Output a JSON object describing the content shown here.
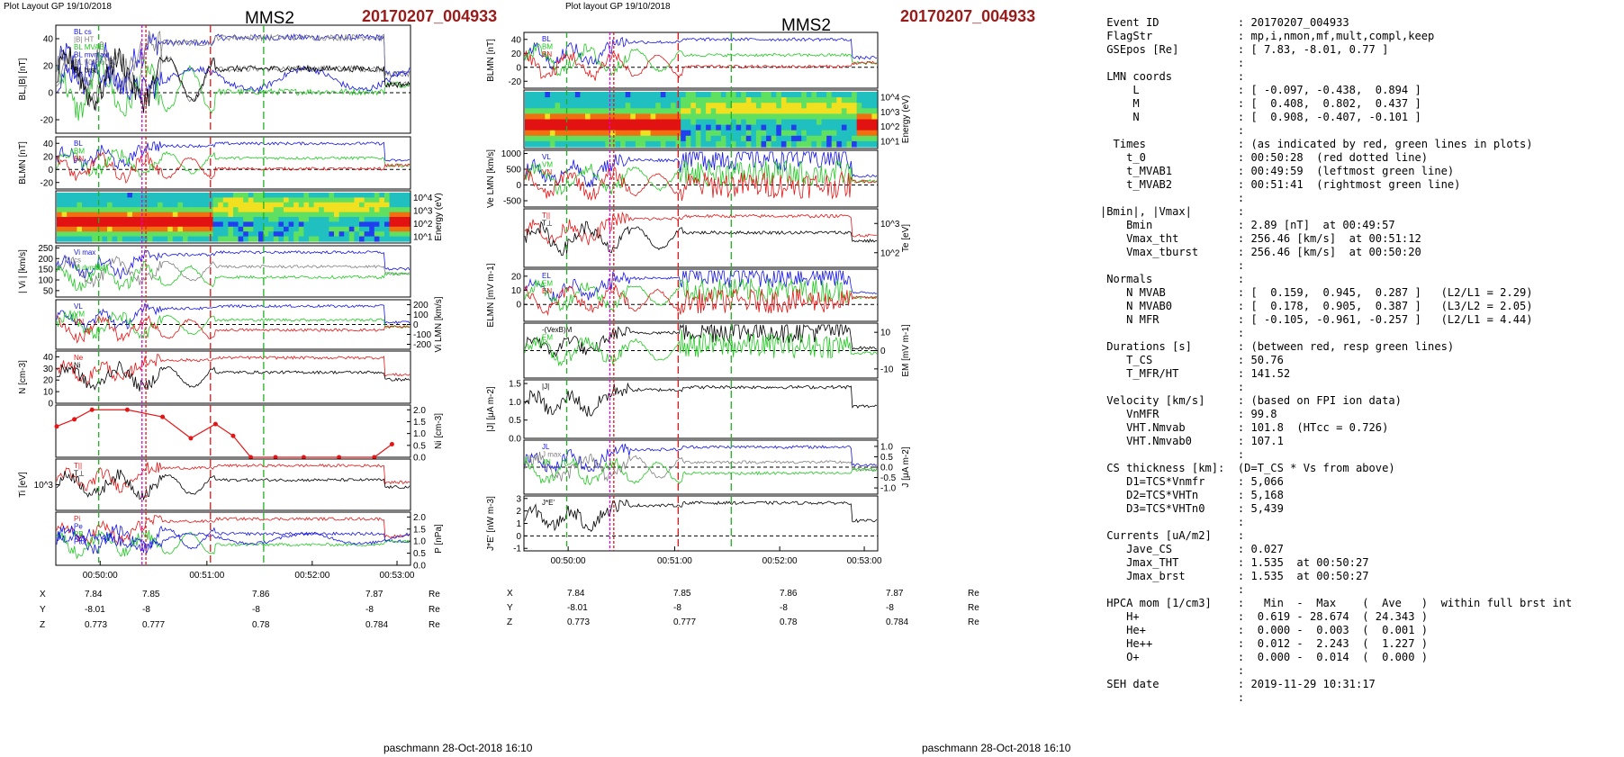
{
  "header": {
    "left_title": "Plot Layout GP 19/10/2018",
    "middle_title": "Plot layout GP 19/10/2018",
    "mms": "MMS2",
    "event": "20170207_004933"
  },
  "footer": "paschmann 28-Oct-2018 16:10",
  "time_ticks": [
    "00:50:00",
    "00:51:00",
    "00:52:00",
    "00:53:00"
  ],
  "ephemeris": [
    {
      "label": "X",
      "values": [
        "7.84",
        "7.85",
        "7.86",
        "7.87"
      ],
      "unit": "Re"
    },
    {
      "label": "Y",
      "values": [
        "-8.01",
        "-8",
        "-8",
        "-8"
      ],
      "unit": "Re"
    },
    {
      "label": "Z",
      "values": [
        "0.773",
        "0.777",
        "0.78",
        "0.784"
      ],
      "unit": "Re"
    }
  ],
  "chart_data": [
    {
      "type": "line",
      "panel": "left-1",
      "ylabel": "BL,|B| [nT]",
      "yticks": [
        "40",
        "20",
        "0",
        "-20"
      ],
      "ylim": [
        -30,
        50
      ],
      "legend": [
        "BL cs",
        "|B| HT",
        "BL MVAB",
        "BL mvmax",
        "BL 50% of BL",
        "BL brst"
      ]
    },
    {
      "type": "line",
      "panel": "left-2",
      "ylabel": "BLMN [nT]",
      "yticks": [
        "40",
        "20",
        "0",
        "-20"
      ],
      "ylim": [
        -30,
        50
      ],
      "series": [
        {
          "name": "BL",
          "color": "#1515e6"
        },
        {
          "name": "BM",
          "color": "#22c922"
        },
        {
          "name": "BN",
          "color": "#e61515"
        }
      ]
    },
    {
      "type": "heatmap",
      "panel": "left-3",
      "ylabel": "Energy (eV)",
      "yticks": [
        "10^4",
        "10^3",
        "10^2",
        "10^1"
      ]
    },
    {
      "type": "line",
      "panel": "left-4",
      "ylabel": "| Vi | [km/s]",
      "yticks": [
        "250",
        "200",
        "150",
        "100",
        "50"
      ],
      "ylim": [
        20,
        260
      ],
      "legend": [
        "Vi max",
        "cs",
        "Vi dvmax"
      ]
    },
    {
      "type": "line",
      "panel": "left-5",
      "ylabel": "Vi LMN [km/s]",
      "yticks": [
        "200",
        "100",
        "0",
        "-100",
        "-200"
      ],
      "ylim": [
        -250,
        250
      ],
      "series": [
        {
          "name": "VL",
          "color": "#1515e6"
        },
        {
          "name": "VM",
          "color": "#22c922"
        },
        {
          "name": "VN",
          "color": "#e61515"
        }
      ]
    },
    {
      "type": "line",
      "panel": "left-6",
      "ylabel": "N [cm-3]",
      "yticks": [
        "40",
        "30",
        "20",
        "10",
        "0"
      ],
      "ylim": [
        0,
        45
      ],
      "series": [
        {
          "name": "Ne",
          "color": "#e61515"
        },
        {
          "name": "Ni",
          "color": "#000000"
        }
      ]
    },
    {
      "type": "line",
      "panel": "left-7",
      "ylabel": "Ni [cm-3]",
      "yticks": [
        "2.0",
        "1.5",
        "1.0",
        "0.5",
        "0.0"
      ],
      "ylim": [
        0,
        2.2
      ],
      "legend": [
        "N He+",
        "N He++",
        "N O+"
      ],
      "x_frac": [
        0.0,
        0.05,
        0.1,
        0.2,
        0.3,
        0.38,
        0.45,
        0.5,
        0.55,
        0.62,
        0.7,
        0.8,
        0.9,
        0.95
      ],
      "values": [
        1.3,
        1.6,
        2.0,
        2.0,
        1.7,
        0.8,
        1.4,
        0.9,
        0.0,
        0.0,
        0.0,
        0.0,
        0.0,
        0.55
      ]
    },
    {
      "type": "line",
      "panel": "left-8",
      "ylabel": "Ti [eV]",
      "yticks": [
        "10^3"
      ],
      "series": [
        {
          "name": "T||",
          "color": "#e61515"
        },
        {
          "name": "T⊥",
          "color": "#000000"
        }
      ]
    },
    {
      "type": "line",
      "panel": "left-9",
      "ylabel": "P [nPa]",
      "yticks": [
        "2.0",
        "1.5",
        "1.0",
        "0.5",
        "0.0"
      ],
      "ylim": [
        0,
        2.2
      ],
      "series": [
        {
          "name": "Pi",
          "color": "#e61515"
        },
        {
          "name": "Pe",
          "color": "#1515e6"
        },
        {
          "name": "PB",
          "color": "#22c922"
        },
        {
          "name": "Ptot",
          "color": "#1515e6"
        }
      ]
    },
    {
      "type": "line",
      "panel": "mid-1",
      "ylabel": "BLMN [nT]",
      "yticks": [
        "40",
        "20",
        "0",
        "-20"
      ],
      "ylim": [
        -30,
        50
      ],
      "series": [
        {
          "name": "BL",
          "color": "#1515e6"
        },
        {
          "name": "BM",
          "color": "#22c922"
        },
        {
          "name": "BN",
          "color": "#e61515"
        }
      ]
    },
    {
      "type": "heatmap",
      "panel": "mid-2",
      "ylabel": "Energy (eV)",
      "yticks": [
        "10^4",
        "10^3",
        "10^2",
        "10^1"
      ]
    },
    {
      "type": "line",
      "panel": "mid-3",
      "ylabel": "Ve LMN [km/s]",
      "yticks": [
        "1000",
        "500",
        "0",
        "-500"
      ],
      "ylim": [
        -700,
        1100
      ],
      "series": [
        {
          "name": "VL",
          "color": "#1515e6"
        },
        {
          "name": "VM",
          "color": "#22c922"
        },
        {
          "name": "VN",
          "color": "#e61515"
        }
      ]
    },
    {
      "type": "line",
      "panel": "mid-4",
      "ylabel": "Te [eV]",
      "yticks": [
        "10^3",
        "10^2"
      ],
      "series": [
        {
          "name": "T||",
          "color": "#e61515"
        },
        {
          "name": "T⊥",
          "color": "#000000"
        }
      ]
    },
    {
      "type": "line",
      "panel": "mid-5",
      "ylabel": "ELMN [mV m-1]",
      "yticks": [
        "20",
        "10",
        "0"
      ],
      "ylim": [
        -12,
        25
      ],
      "series": [
        {
          "name": "EL",
          "color": "#1515e6"
        },
        {
          "name": "EM",
          "color": "#22c922"
        },
        {
          "name": "EN",
          "color": "#e61515"
        }
      ]
    },
    {
      "type": "line",
      "panel": "mid-6",
      "ylabel": "EM [mV m-1]",
      "yticks": [
        "10",
        "0",
        "-10"
      ],
      "ylim": [
        -15,
        15
      ],
      "series": [
        {
          "name": "-(VexB)M",
          "color": "#000000"
        },
        {
          "name": "EM",
          "color": "#22c922"
        }
      ]
    },
    {
      "type": "line",
      "panel": "mid-7",
      "ylabel": "|J| [μA m-2]",
      "yticks": [
        "1.5",
        "1.0",
        "0.5",
        "0.0"
      ],
      "ylim": [
        0,
        1.6
      ],
      "series": [
        {
          "name": "|J|",
          "color": "#000000"
        }
      ]
    },
    {
      "type": "line",
      "panel": "mid-8",
      "ylabel": "J [μA m-2]",
      "yticks": [
        "1.0",
        "0.5",
        "0.0",
        "-0.5",
        "-1.0"
      ],
      "ylim": [
        -1.3,
        1.3
      ],
      "legend": [
        "JL",
        "J max",
        "JN"
      ]
    },
    {
      "type": "line",
      "panel": "mid-9",
      "ylabel": "J*E' [nW m-3]",
      "yticks": [
        "3",
        "2",
        "1",
        "0",
        "-1"
      ],
      "ylim": [
        -1.2,
        3.2
      ],
      "series": [
        {
          "name": "J*E'",
          "color": "#000000"
        }
      ]
    }
  ],
  "summary_lines": [
    " Event ID            : 20170207_004933",
    " FlagStr             : mp,i,nmon,mf,mult,compl,keep",
    " GSEpos [Re]         : [ 7.83, -8.01, 0.77 ]",
    "                     :",
    " LMN coords          :",
    "     L               : [ -0.097, -0.438,  0.894 ]",
    "     M               : [  0.408,  0.802,  0.437 ]",
    "     N               : [  0.908, -0.407, -0.101 ]",
    "                     :",
    "  Times              : (as indicated by red, green lines in plots)",
    "    t_0              : 00:50:28  (red dotted line)",
    "    t_MVAB1          : 00:49:59  (leftmost green line)",
    "    t_MVAB2          : 00:51:41  (rightmost green line)",
    "                     :",
    "|Bmin|, |Vmax|       :",
    "    Bmin             : 2.89 [nT]  at 00:49:57",
    "    Vmax_tht         : 256.46 [km/s]  at 00:51:12",
    "    Vmax_tburst      : 256.46 [km/s]  at 00:50:20",
    "                     :",
    " Normals             :",
    "    N MVAB           : [  0.159,  0.945,  0.287 ]   (L2/L1 = 2.29)",
    "    N MVAB0          : [  0.178,  0.905,  0.387 ]   (L3/L2 = 2.05)",
    "    N MFR            : [ -0.105, -0.961, -0.257 ]   (L2/L1 = 4.44)",
    "                     :",
    " Durations [s]       : (between red, resp green lines)",
    "    T_CS             : 50.76",
    "    T_MFR/HT         : 141.52",
    "                     :",
    " Velocity [km/s]     : (based on FPI ion data)",
    "    VnMFR            : 99.8",
    "    VHT.Nmvab        : 101.8  (HTcc = 0.726)",
    "    VHT.Nmvab0       : 107.1",
    "                     :",
    " CS thickness [km]:  (D=T_CS * Vs from above)",
    "    D1=TCS*Vnmfr     : 5,066",
    "    D2=TCS*VHTn      : 5,168",
    "    D3=TCS*VHTn0     : 5,439",
    "                     :",
    " Currents [uA/m2]    :",
    "    Jave_CS          : 0.027",
    "    Jmax_THT         : 1.535  at 00:50:27",
    "    Jmax_brst        : 1.535  at 00:50:27",
    "                     :",
    " HPCA mom [1/cm3]    :   Min  -  Max    (  Ave   )  within full brst int",
    "    H+               :  0.619 - 28.674  ( 24.343 )",
    "    He+              :  0.000 -  0.003  (  0.001 )",
    "    He++             :  0.012 -  2.243  (  1.227 )",
    "    O+               :  0.000 -  0.014  (  0.000 )",
    "                     :",
    " SEH date            : 2019-11-29 10:31:17",
    "                     :"
  ]
}
